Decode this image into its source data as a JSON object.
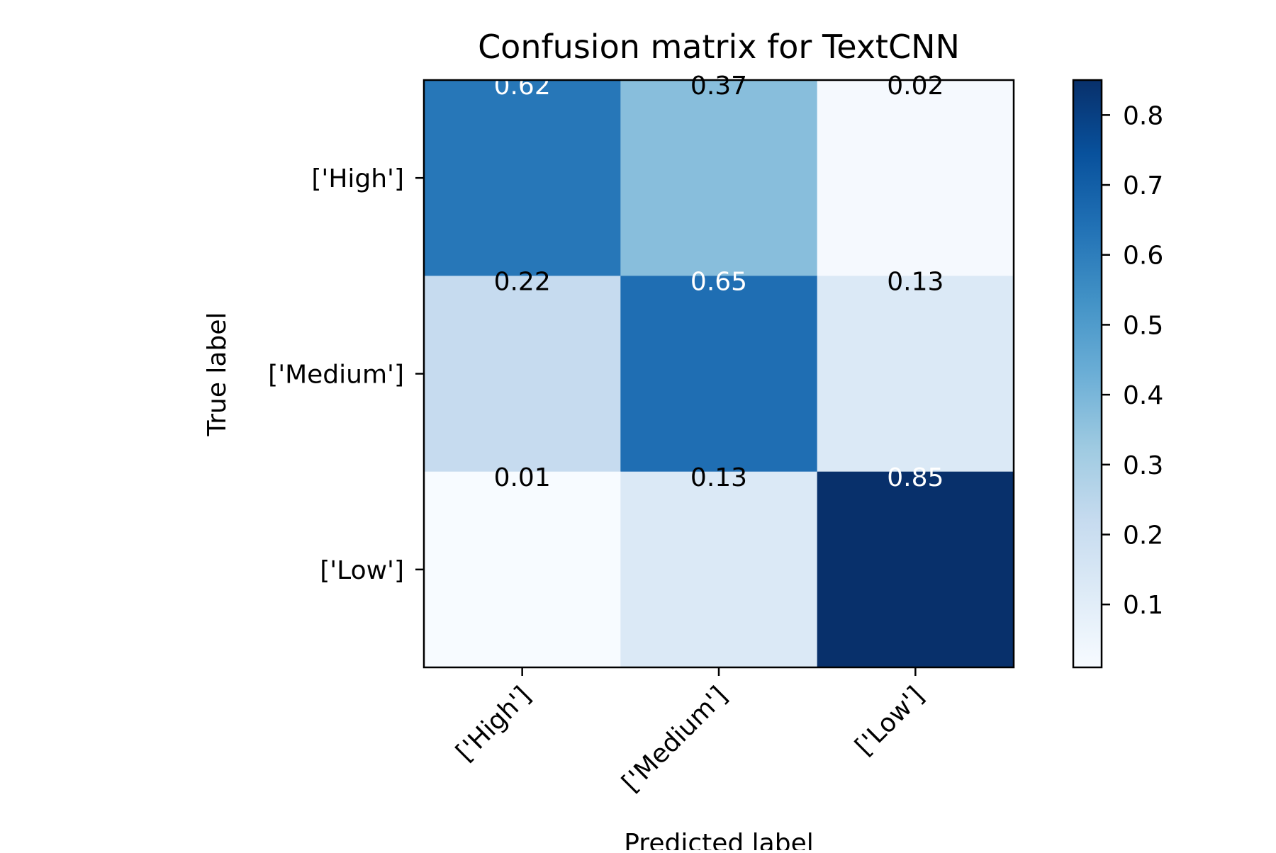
{
  "chart_data": {
    "type": "heatmap",
    "title": "Confusion matrix for TextCNN",
    "xlabel": "Predicted label",
    "ylabel": "True label",
    "x_categories": [
      "['High']",
      "['Medium']",
      "['Low']"
    ],
    "y_categories": [
      "['High']",
      "['Medium']",
      "['Low']"
    ],
    "values": [
      [
        0.62,
        0.37,
        0.02
      ],
      [
        0.22,
        0.65,
        0.13
      ],
      [
        0.01,
        0.13,
        0.85
      ]
    ],
    "cell_labels": [
      [
        "0.62",
        "0.37",
        "0.02"
      ],
      [
        "0.22",
        "0.65",
        "0.13"
      ],
      [
        "0.01",
        "0.13",
        "0.85"
      ]
    ],
    "colormap": "Blues",
    "colorbar": {
      "min": 0.01,
      "max": 0.85,
      "ticks": [
        0.1,
        0.2,
        0.3,
        0.4,
        0.5,
        0.6,
        0.7,
        0.8
      ],
      "tick_labels": [
        "0.1",
        "0.2",
        "0.3",
        "0.4",
        "0.5",
        "0.6",
        "0.7",
        "0.8"
      ]
    },
    "x_tick_rotation_deg": 45,
    "grid": false,
    "text_color_dark": "#000000",
    "text_color_light": "#ffffff"
  }
}
